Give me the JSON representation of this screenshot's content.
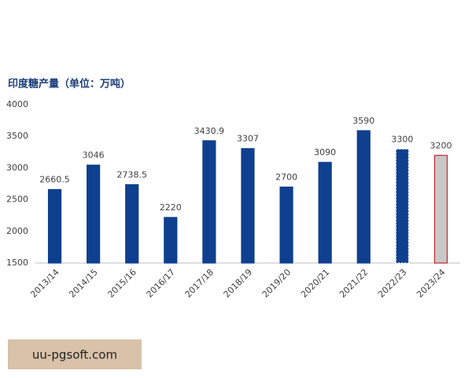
{
  "chart_data": {
    "type": "bar",
    "title": "印度糖产量（单位：万吨）",
    "categories": [
      "2013/14",
      "2014/15",
      "2015/16",
      "2016/17",
      "2017/18",
      "2018/19",
      "2019/20",
      "2020/21",
      "2021/22",
      "2022/23",
      "2023/24"
    ],
    "values": [
      2660.5,
      3046,
      2738.5,
      2220,
      3430.9,
      3307,
      2700,
      3090,
      3590,
      3300,
      3200
    ],
    "colors": [
      "#0f3f8f",
      "#0f3f8f",
      "#0f3f8f",
      "#0f3f8f",
      "#0f3f8f",
      "#0f3f8f",
      "#0f3f8f",
      "#0f3f8f",
      "#0f3f8f",
      "#0f3f8f",
      "#c8c8c8"
    ],
    "edge_colors": [
      "#0f3f8f",
      "#0f3f8f",
      "#0f3f8f",
      "#0f3f8f",
      "#0f3f8f",
      "#0f3f8f",
      "#0f3f8f",
      "#0f3f8f",
      "#0f3f8f",
      "#ffffff",
      "#c0272d"
    ],
    "edge_dashed": [
      false,
      false,
      false,
      false,
      false,
      false,
      false,
      false,
      false,
      true,
      false
    ],
    "ylim": [
      1500,
      4000
    ],
    "yticks": [
      1500,
      2000,
      2500,
      3000,
      3500,
      4000
    ],
    "grid": false
  },
  "footer": {
    "text": "uu-pgsoft.com"
  }
}
